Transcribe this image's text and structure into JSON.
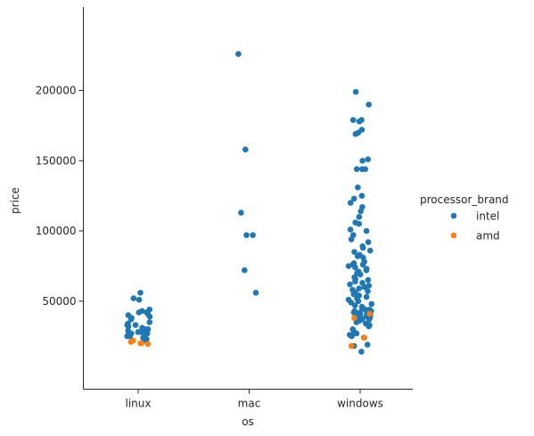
{
  "chart_data": {
    "type": "scatter",
    "xlabel": "os",
    "ylabel": "price",
    "categories": [
      "linux",
      "mac",
      "windows"
    ],
    "y_ticks": [
      50000,
      100000,
      150000,
      200000
    ],
    "y_tick_labels": [
      "50000",
      "100000",
      "150000",
      "200000"
    ],
    "ylim": [
      12000,
      236000
    ],
    "grid": false,
    "legend": {
      "title": "processor_brand",
      "placement": "right"
    },
    "series": [
      {
        "name": "intel",
        "color": "#1f77b4",
        "points": [
          {
            "x": "linux",
            "y": 56000
          },
          {
            "x": "linux",
            "y": 52000
          },
          {
            "x": "linux",
            "y": 51000
          },
          {
            "x": "linux",
            "y": 44000
          },
          {
            "x": "linux",
            "y": 43000
          },
          {
            "x": "linux",
            "y": 42000
          },
          {
            "x": "linux",
            "y": 42000
          },
          {
            "x": "linux",
            "y": 41000
          },
          {
            "x": "linux",
            "y": 40000
          },
          {
            "x": "linux",
            "y": 39000
          },
          {
            "x": "linux",
            "y": 38000
          },
          {
            "x": "linux",
            "y": 37000
          },
          {
            "x": "linux",
            "y": 35000
          },
          {
            "x": "linux",
            "y": 34000
          },
          {
            "x": "linux",
            "y": 33000
          },
          {
            "x": "linux",
            "y": 33000
          },
          {
            "x": "linux",
            "y": 32000
          },
          {
            "x": "linux",
            "y": 31000
          },
          {
            "x": "linux",
            "y": 30000
          },
          {
            "x": "linux",
            "y": 30000
          },
          {
            "x": "linux",
            "y": 29000
          },
          {
            "x": "linux",
            "y": 29000
          },
          {
            "x": "linux",
            "y": 28000
          },
          {
            "x": "linux",
            "y": 28000
          },
          {
            "x": "linux",
            "y": 27000
          },
          {
            "x": "linux",
            "y": 27000
          },
          {
            "x": "linux",
            "y": 26000
          },
          {
            "x": "linux",
            "y": 26000
          },
          {
            "x": "linux",
            "y": 25000
          },
          {
            "x": "linux",
            "y": 25000
          },
          {
            "x": "linux",
            "y": 24000
          },
          {
            "x": "linux",
            "y": 24000
          },
          {
            "x": "linux",
            "y": 23000
          },
          {
            "x": "linux",
            "y": 23000
          },
          {
            "x": "linux",
            "y": 22000
          },
          {
            "x": "linux",
            "y": 22000
          },
          {
            "x": "mac",
            "y": 226000
          },
          {
            "x": "mac",
            "y": 158000
          },
          {
            "x": "mac",
            "y": 113000
          },
          {
            "x": "mac",
            "y": 97000
          },
          {
            "x": "mac",
            "y": 97000
          },
          {
            "x": "mac",
            "y": 72000
          },
          {
            "x": "mac",
            "y": 56000
          },
          {
            "x": "windows",
            "y": 199000
          },
          {
            "x": "windows",
            "y": 190000
          },
          {
            "x": "windows",
            "y": 179000
          },
          {
            "x": "windows",
            "y": 179000
          },
          {
            "x": "windows",
            "y": 178000
          },
          {
            "x": "windows",
            "y": 172000
          },
          {
            "x": "windows",
            "y": 170000
          },
          {
            "x": "windows",
            "y": 169000
          },
          {
            "x": "windows",
            "y": 151000
          },
          {
            "x": "windows",
            "y": 150000
          },
          {
            "x": "windows",
            "y": 144000
          },
          {
            "x": "windows",
            "y": 144000
          },
          {
            "x": "windows",
            "y": 144000
          },
          {
            "x": "windows",
            "y": 131000
          },
          {
            "x": "windows",
            "y": 125000
          },
          {
            "x": "windows",
            "y": 123000
          },
          {
            "x": "windows",
            "y": 120000
          },
          {
            "x": "windows",
            "y": 117000
          },
          {
            "x": "windows",
            "y": 114000
          },
          {
            "x": "windows",
            "y": 110000
          },
          {
            "x": "windows",
            "y": 106000
          },
          {
            "x": "windows",
            "y": 105000
          },
          {
            "x": "windows",
            "y": 101000
          },
          {
            "x": "windows",
            "y": 100000
          },
          {
            "x": "windows",
            "y": 97000
          },
          {
            "x": "windows",
            "y": 94000
          },
          {
            "x": "windows",
            "y": 92000
          },
          {
            "x": "windows",
            "y": 89000
          },
          {
            "x": "windows",
            "y": 88000
          },
          {
            "x": "windows",
            "y": 86000
          },
          {
            "x": "windows",
            "y": 85000
          },
          {
            "x": "windows",
            "y": 83000
          },
          {
            "x": "windows",
            "y": 82000
          },
          {
            "x": "windows",
            "y": 81000
          },
          {
            "x": "windows",
            "y": 78000
          },
          {
            "x": "windows",
            "y": 77000
          },
          {
            "x": "windows",
            "y": 76000
          },
          {
            "x": "windows",
            "y": 76000
          },
          {
            "x": "windows",
            "y": 75000
          },
          {
            "x": "windows",
            "y": 74000
          },
          {
            "x": "windows",
            "y": 73000
          },
          {
            "x": "windows",
            "y": 72000
          },
          {
            "x": "windows",
            "y": 71000
          },
          {
            "x": "windows",
            "y": 70000
          },
          {
            "x": "windows",
            "y": 69000
          },
          {
            "x": "windows",
            "y": 67000
          },
          {
            "x": "windows",
            "y": 66000
          },
          {
            "x": "windows",
            "y": 65000
          },
          {
            "x": "windows",
            "y": 64000
          },
          {
            "x": "windows",
            "y": 63000
          },
          {
            "x": "windows",
            "y": 62000
          },
          {
            "x": "windows",
            "y": 61000
          },
          {
            "x": "windows",
            "y": 60000
          },
          {
            "x": "windows",
            "y": 59000
          },
          {
            "x": "windows",
            "y": 58000
          },
          {
            "x": "windows",
            "y": 57000
          },
          {
            "x": "windows",
            "y": 56000
          },
          {
            "x": "windows",
            "y": 55000
          },
          {
            "x": "windows",
            "y": 54000
          },
          {
            "x": "windows",
            "y": 53000
          },
          {
            "x": "windows",
            "y": 52000
          },
          {
            "x": "windows",
            "y": 51000
          },
          {
            "x": "windows",
            "y": 50000
          },
          {
            "x": "windows",
            "y": 49000
          },
          {
            "x": "windows",
            "y": 48000
          },
          {
            "x": "windows",
            "y": 47000
          },
          {
            "x": "windows",
            "y": 46000
          },
          {
            "x": "windows",
            "y": 45000
          },
          {
            "x": "windows",
            "y": 44000
          },
          {
            "x": "windows",
            "y": 44000
          },
          {
            "x": "windows",
            "y": 43000
          },
          {
            "x": "windows",
            "y": 43000
          },
          {
            "x": "windows",
            "y": 42000
          },
          {
            "x": "windows",
            "y": 42000
          },
          {
            "x": "windows",
            "y": 41000
          },
          {
            "x": "windows",
            "y": 41000
          },
          {
            "x": "windows",
            "y": 40000
          },
          {
            "x": "windows",
            "y": 40000
          },
          {
            "x": "windows",
            "y": 39000
          },
          {
            "x": "windows",
            "y": 39000
          },
          {
            "x": "windows",
            "y": 38000
          },
          {
            "x": "windows",
            "y": 38000
          },
          {
            "x": "windows",
            "y": 37000
          },
          {
            "x": "windows",
            "y": 37000
          },
          {
            "x": "windows",
            "y": 36000
          },
          {
            "x": "windows",
            "y": 35000
          },
          {
            "x": "windows",
            "y": 34000
          },
          {
            "x": "windows",
            "y": 33000
          },
          {
            "x": "windows",
            "y": 32000
          },
          {
            "x": "windows",
            "y": 30000
          },
          {
            "x": "windows",
            "y": 28000
          },
          {
            "x": "windows",
            "y": 27000
          },
          {
            "x": "windows",
            "y": 26000
          },
          {
            "x": "windows",
            "y": 25000
          },
          {
            "x": "windows",
            "y": 24000
          },
          {
            "x": "windows",
            "y": 19000
          },
          {
            "x": "windows",
            "y": 18000
          },
          {
            "x": "windows",
            "y": 14000
          }
        ]
      },
      {
        "name": "amd",
        "color": "#ff7f0e",
        "points": [
          {
            "x": "linux",
            "y": 22000
          },
          {
            "x": "linux",
            "y": 21000
          },
          {
            "x": "linux",
            "y": 20000
          },
          {
            "x": "linux",
            "y": 20000
          },
          {
            "x": "linux",
            "y": 19500
          },
          {
            "x": "windows",
            "y": 41000
          },
          {
            "x": "windows",
            "y": 38000
          },
          {
            "x": "windows",
            "y": 24000
          },
          {
            "x": "windows",
            "y": 18000
          }
        ]
      }
    ]
  }
}
